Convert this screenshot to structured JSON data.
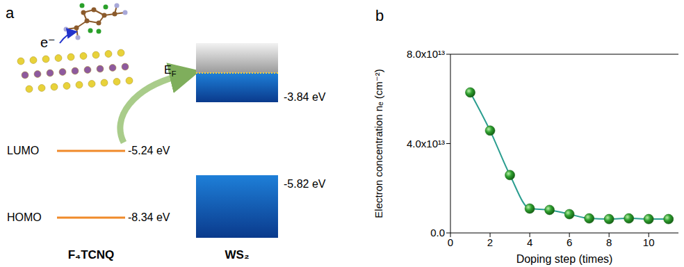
{
  "panel_labels": [
    "a",
    "b"
  ],
  "diagram": {
    "electron": "e⁻",
    "molecule": {
      "name": "F₄TCNQ",
      "levels": [
        {
          "label": "LUMO",
          "energy": "-5.24 eV"
        },
        {
          "label": "HOMO",
          "energy": "-8.34 eV"
        }
      ]
    },
    "semiconductor": {
      "name": "WS₂",
      "fermi_level": {
        "base": "E",
        "sub": "F"
      },
      "band_edges": [
        "-3.84 eV",
        "-5.82 eV"
      ]
    }
  },
  "chart_data": {
    "type": "line",
    "x_label": "Doping step (times)",
    "y_label": "Electron concentration nₑ (cm⁻²)",
    "x": [
      1,
      2,
      3,
      4,
      5,
      6,
      7,
      8,
      9,
      10,
      11
    ],
    "values": [
      62900000000000,
      45800000000000,
      25900000000000,
      10900000000000,
      10300000000000,
      8400000000000,
      6500000000000,
      6200000000000,
      6500000000000,
      6200000000000,
      6200000000000
    ],
    "color": "#2a9d8f",
    "marker": "circle",
    "line_style": "solid",
    "xlim": [
      0,
      11.5
    ],
    "xticks": [
      0,
      2,
      4,
      6,
      8,
      10
    ],
    "ylim": [
      0,
      80000000000000
    ],
    "yticks": [
      {
        "value": 0,
        "label": "0.0"
      },
      {
        "value": 40000000000000,
        "label": "4.0x10¹³"
      },
      {
        "value": 80000000000000,
        "label": "8.0x10¹³"
      }
    ],
    "grid": false
  }
}
